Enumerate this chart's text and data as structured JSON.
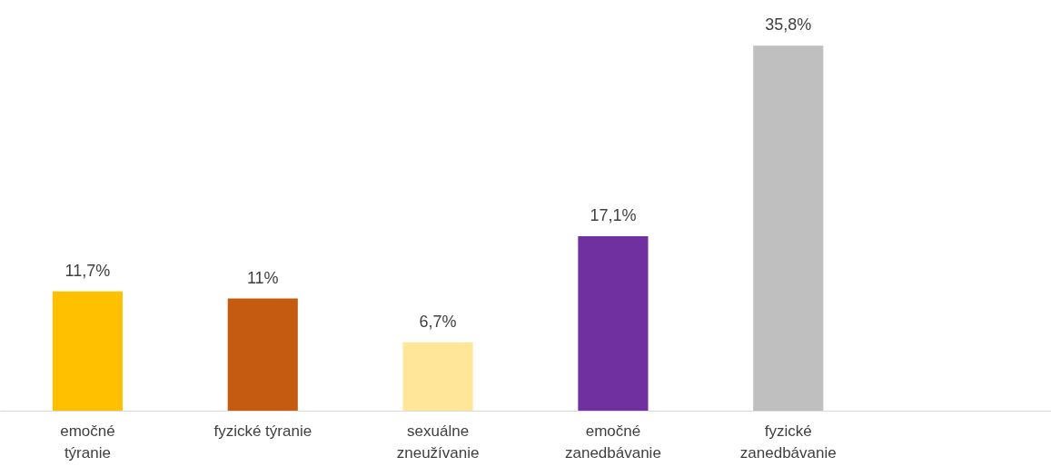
{
  "chart_data": {
    "type": "bar",
    "categories": [
      "emočné\ntýranie",
      "fyzické týranie",
      "sexuálne\nzneužívanie",
      "emočné\nzanedbávanie",
      "fyzické\nzanedbávanie",
      null
    ],
    "values": [
      11.7,
      11,
      6.7,
      17.1,
      35.8,
      null
    ],
    "colors": [
      "#ffc000",
      "#c55a11",
      "#ffe699",
      "#7030a0",
      "#bfbfbf",
      "#bfbfbf"
    ],
    "value_labels": [
      "11,7%",
      "11%",
      "6,7%",
      "17,1%",
      "35,8%",
      null
    ],
    "grid": false
  }
}
